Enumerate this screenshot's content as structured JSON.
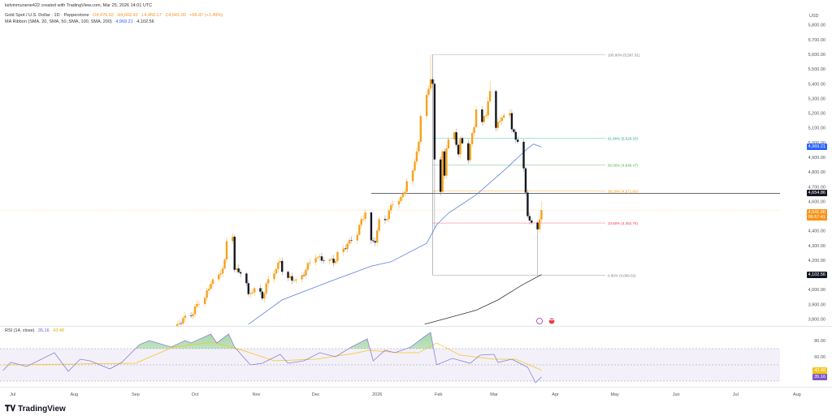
{
  "header": {
    "attribution": "kelvinmunene422 created with TradingView.com, Mar 25, 2026 14:01 UTC"
  },
  "legend": {
    "symbol": "Gold Spot / U.S. Dollar · 1D · Pepperstone",
    "open": "O4,476.62",
    "high": "H4,602.42",
    "low": "L4,456.17",
    "close": "C4,541.00",
    "change": "+66.47 (+1.49%)",
    "ma_title": "MA Ribbon (SMA, 20, SMA, 50, SMA, 100, SMA, 200)",
    "ma_val1": "4,969.21",
    "ma_val2": "4,102.56",
    "rsi_title": "RSI (14, close)",
    "rsi_val": "35.16",
    "rsi_ma_val": "43.48"
  },
  "price_axis": {
    "currency": "USD",
    "ticks": [
      "5,800.00",
      "5,700.00",
      "5,600.00",
      "5,500.00",
      "5,400.00",
      "5,300.00",
      "5,200.00",
      "5,100.00",
      "5,000.00",
      "4,900.00",
      "4,800.00",
      "4,700.00",
      "4,600.00",
      "4,400.00",
      "4,300.00",
      "4,200.00",
      "4,000.00",
      "3,900.00",
      "3,800.00"
    ],
    "tick_values": [
      5800,
      5700,
      5600,
      5500,
      5400,
      5300,
      5200,
      5100,
      5000,
      4900,
      4800,
      4700,
      4600,
      4400,
      4300,
      4200,
      4000,
      3900,
      3800
    ],
    "badges": [
      {
        "label": "4,969.21",
        "value": 4969.21,
        "color": "#2962ff"
      },
      {
        "label": "4,654.86",
        "value": 4654.86,
        "color": "#131722"
      },
      {
        "label": "4,541.00",
        "sub": "06:57:41",
        "value": 4541.0,
        "color": "#f7931a"
      },
      {
        "label": "4,102.56",
        "value": 4102.56,
        "color": "#131722"
      }
    ]
  },
  "rsi_axis": {
    "ticks": [
      "80.00",
      "60.00"
    ],
    "tick_values": [
      80,
      60
    ],
    "badges": [
      {
        "label": "43.48",
        "value": 43.48,
        "color": "#f5c518"
      },
      {
        "label": "35.16",
        "value": 35.16,
        "color": "#7e57c2"
      }
    ]
  },
  "time_axis": {
    "labels": [
      "Jul",
      "Aug",
      "Sep",
      "Oct",
      "Nov",
      "Dec",
      "2026",
      "Feb",
      "Mar",
      "Apr",
      "May",
      "Jun",
      "Jul",
      "Aug"
    ],
    "dates": [
      "2025-07-01",
      "2025-08-01",
      "2025-09-01",
      "2025-10-01",
      "2025-11-01",
      "2025-12-01",
      "2026-01-01",
      "2026-02-01",
      "2026-03-01",
      "2026-04-01",
      "2026-05-01",
      "2026-06-01",
      "2026-07-01",
      "2026-08-01"
    ]
  },
  "fib": {
    "levels": [
      {
        "label": "100.00% (5,597.91)",
        "value": 5597.91,
        "color": "#787b86"
      },
      {
        "label": "61.80% (5,029.33)",
        "value": 5029.33,
        "color": "#26a69a"
      },
      {
        "label": "50.00% (4,848.47)",
        "value": 4848.47,
        "color": "#4caf50"
      },
      {
        "label": "38.20% (4,671.60)",
        "value": 4671.6,
        "color": "#ff9800"
      },
      {
        "label": "23.60% (4,452.76)",
        "value": 4452.76,
        "color": "#f23645"
      },
      {
        "label": "0.00% (4,099.02)",
        "value": 4099.02,
        "color": "#787b86"
      }
    ],
    "start_date": "2026-01-29",
    "end_date": "2026-04-30"
  },
  "horizontal_line": {
    "value": 4654.86,
    "from_date": "2025-12-29"
  },
  "colors": {
    "up": "#f7a21b",
    "down": "#131722",
    "sma50": "#5b7fe0",
    "sma200": "#333333",
    "rsi": "#8a80d6",
    "rsi_ma": "#f5c518"
  },
  "logo": "TradingView",
  "chart_data": {
    "type": "candlestick",
    "price_range": [
      3800,
      5800
    ],
    "closes": [
      [
        "2025-09-19",
        3700
      ],
      [
        "2025-09-22",
        3765
      ],
      [
        "2025-09-29",
        3820
      ],
      [
        "2025-10-06",
        3945
      ],
      [
        "2025-10-09",
        4040
      ],
      [
        "2025-10-14",
        4110
      ],
      [
        "2025-10-16",
        4205
      ],
      [
        "2025-10-17",
        4330
      ],
      [
        "2025-10-20",
        4360
      ],
      [
        "2025-10-21",
        4135
      ],
      [
        "2025-10-24",
        4110
      ],
      [
        "2025-10-28",
        3970
      ],
      [
        "2025-10-31",
        4010
      ],
      [
        "2025-11-04",
        3940
      ],
      [
        "2025-11-10",
        4110
      ],
      [
        "2025-11-13",
        4195
      ],
      [
        "2025-11-17",
        4080
      ],
      [
        "2025-11-21",
        4070
      ],
      [
        "2025-11-26",
        4135
      ],
      [
        "2025-12-01",
        4215
      ],
      [
        "2025-12-08",
        4205
      ],
      [
        "2025-12-11",
        4195
      ],
      [
        "2025-12-15",
        4280
      ],
      [
        "2025-12-19",
        4335
      ],
      [
        "2025-12-23",
        4440
      ],
      [
        "2025-12-26",
        4525
      ],
      [
        "2025-12-29",
        4335
      ],
      [
        "2025-12-31",
        4320
      ],
      [
        "2026-01-02",
        4480
      ],
      [
        "2026-01-06",
        4480
      ],
      [
        "2026-01-08",
        4575
      ],
      [
        "2026-01-13",
        4630
      ],
      [
        "2026-01-15",
        4665
      ],
      [
        "2026-01-19",
        4810
      ],
      [
        "2026-01-21",
        4940
      ],
      [
        "2026-01-22",
        5005
      ],
      [
        "2026-01-23",
        5180
      ],
      [
        "2026-01-26",
        5325
      ],
      [
        "2026-01-28",
        5430,
        5597.91
      ],
      [
        "2026-01-29",
        5400
      ],
      [
        "2026-01-30",
        4885,
        4410
      ],
      [
        "2026-02-02",
        4665
      ],
      [
        "2026-02-03",
        4940
      ],
      [
        "2026-02-04",
        4775
      ],
      [
        "2026-02-05",
        4960
      ],
      [
        "2026-02-09",
        5070
      ],
      [
        "2026-02-11",
        4920
      ],
      [
        "2026-02-12",
        5030
      ],
      [
        "2026-02-13",
        4995
      ],
      [
        "2026-02-16",
        4880
      ],
      [
        "2026-02-17",
        4990
      ],
      [
        "2026-02-19",
        5105
      ],
      [
        "2026-02-20",
        5225
      ],
      [
        "2026-02-23",
        5140
      ],
      [
        "2026-02-25",
        5185
      ],
      [
        "2026-02-26",
        5280
      ],
      [
        "2026-02-27",
        5350,
        5420
      ],
      [
        "2026-03-02",
        5100
      ],
      [
        "2026-03-03",
        5140
      ],
      [
        "2026-03-05",
        5170
      ],
      [
        "2026-03-06",
        5185
      ],
      [
        "2026-03-09",
        5200
      ],
      [
        "2026-03-10",
        5090
      ],
      [
        "2026-03-12",
        5020
      ],
      [
        "2026-03-13",
        5005
      ],
      [
        "2026-03-16",
        4825
      ],
      [
        "2026-03-17",
        4660
      ],
      [
        "2026-03-18",
        4500
      ],
      [
        "2026-03-19",
        4470
      ],
      [
        "2026-03-23",
        4410,
        4099.02
      ],
      [
        "2026-03-24",
        4476.62
      ]
    ],
    "last_candle": {
      "date": "2026-03-25",
      "open": 4476.62,
      "high": 4602.42,
      "low": 4456.17,
      "close": 4541.0
    },
    "sma50": [
      [
        "2025-10-28",
        3765
      ],
      [
        "2025-11-14",
        3930
      ],
      [
        "2025-12-08",
        4055
      ],
      [
        "2025-12-29",
        4160
      ],
      [
        "2026-01-08",
        4190
      ],
      [
        "2026-01-26",
        4315
      ],
      [
        "2026-01-31",
        4440
      ],
      [
        "2026-02-06",
        4520
      ],
      [
        "2026-02-20",
        4645
      ],
      [
        "2026-03-06",
        4810
      ],
      [
        "2026-03-18",
        4960
      ],
      [
        "2026-03-21",
        4990
      ],
      [
        "2026-03-25",
        4969.21
      ]
    ],
    "sma200": [
      [
        "2026-01-25",
        3765
      ],
      [
        "2026-02-20",
        3860
      ],
      [
        "2026-03-03",
        3930
      ],
      [
        "2026-03-15",
        4030
      ],
      [
        "2026-03-25",
        4102.56
      ]
    ],
    "rsi_range": [
      20,
      100
    ],
    "rsi_levels": [
      70,
      50,
      30
    ],
    "rsi": [
      [
        "2025-06-26",
        43
      ],
      [
        "2025-06-30",
        53
      ],
      [
        "2025-07-08",
        48
      ],
      [
        "2025-07-22",
        65
      ],
      [
        "2025-07-29",
        42
      ],
      [
        "2025-08-04",
        57
      ],
      [
        "2025-08-09",
        55
      ],
      [
        "2025-08-19",
        45
      ],
      [
        "2025-08-25",
        53
      ],
      [
        "2025-09-03",
        75
      ],
      [
        "2025-09-08",
        80
      ],
      [
        "2025-09-19",
        72
      ],
      [
        "2025-09-26",
        80
      ],
      [
        "2025-09-29",
        77
      ],
      [
        "2025-10-09",
        88
      ],
      [
        "2025-10-12",
        77
      ],
      [
        "2025-10-18",
        88
      ],
      [
        "2025-10-21",
        72
      ],
      [
        "2025-10-29",
        50
      ],
      [
        "2025-11-04",
        52
      ],
      [
        "2025-11-13",
        63
      ],
      [
        "2025-11-17",
        52
      ],
      [
        "2025-11-25",
        55
      ],
      [
        "2025-12-03",
        65
      ],
      [
        "2025-12-11",
        60
      ],
      [
        "2025-12-19",
        72
      ],
      [
        "2025-12-27",
        82
      ],
      [
        "2025-12-30",
        55
      ],
      [
        "2026-01-05",
        68
      ],
      [
        "2026-01-10",
        65
      ],
      [
        "2026-01-18",
        72
      ],
      [
        "2026-01-25",
        85
      ],
      [
        "2026-01-28",
        90
      ],
      [
        "2026-01-31",
        50
      ],
      [
        "2026-02-08",
        58
      ],
      [
        "2026-02-17",
        52
      ],
      [
        "2026-02-22",
        62
      ],
      [
        "2026-03-01",
        63
      ],
      [
        "2026-03-03",
        53
      ],
      [
        "2026-03-10",
        57
      ],
      [
        "2026-03-18",
        47
      ],
      [
        "2026-03-22",
        28
      ],
      [
        "2026-03-25",
        35.16
      ]
    ],
    "rsi_ma": [
      [
        "2025-06-26",
        50
      ],
      [
        "2025-08-01",
        51
      ],
      [
        "2025-09-01",
        52
      ],
      [
        "2025-09-20",
        72
      ],
      [
        "2025-10-10",
        78
      ],
      [
        "2025-10-25",
        68
      ],
      [
        "2025-11-10",
        55
      ],
      [
        "2025-12-01",
        57
      ],
      [
        "2025-12-20",
        64
      ],
      [
        "2025-12-28",
        68
      ],
      [
        "2026-01-12",
        65
      ],
      [
        "2026-01-22",
        65
      ],
      [
        "2026-01-31",
        77
      ],
      [
        "2026-02-12",
        62
      ],
      [
        "2026-03-01",
        57
      ],
      [
        "2026-03-12",
        57
      ],
      [
        "2026-03-25",
        43.48
      ]
    ]
  }
}
